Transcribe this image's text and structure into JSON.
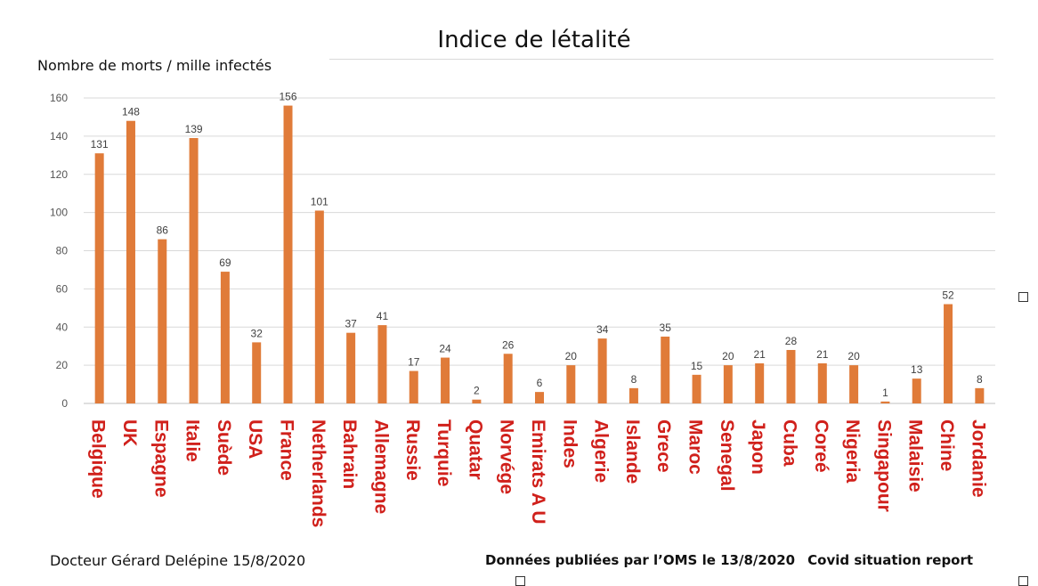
{
  "chart_data": {
    "type": "bar",
    "title": "Indice de létalité",
    "ylabel": "Nombre de morts / mille infectés",
    "xlabel": "",
    "ylim": [
      0,
      160
    ],
    "yticks": [
      0,
      20,
      40,
      60,
      80,
      100,
      120,
      140,
      160
    ],
    "grid": true,
    "bar_color": "#E07B39",
    "label_color": "#D0201B",
    "categories": [
      "Belgique",
      "UK",
      "Espagne",
      "Italie",
      "Suède",
      "USA",
      "France",
      "Netherlands",
      "Bahrain",
      "Allemagne",
      "Russie",
      "Turquie",
      "Quatar",
      "Norvége",
      "Emirats A U",
      "Indes",
      "Algerie",
      "Islande",
      "Grece",
      "Maroc",
      "Senegal",
      "Japon",
      "Cuba",
      "Coreé",
      "Nigeria",
      "Singapour",
      "Malaisie",
      "Chine",
      "Jordanie"
    ],
    "values": [
      131,
      148,
      86,
      139,
      69,
      32,
      156,
      101,
      37,
      41,
      17,
      24,
      2,
      26,
      6,
      20,
      34,
      8,
      35,
      15,
      20,
      21,
      28,
      21,
      20,
      1,
      13,
      52,
      8
    ]
  },
  "footer": {
    "author": "Docteur Gérard Delépine 15/8/2020",
    "source": "Données publiées par l’OMS  le 13/8/2020",
    "report": "Covid situation report"
  }
}
